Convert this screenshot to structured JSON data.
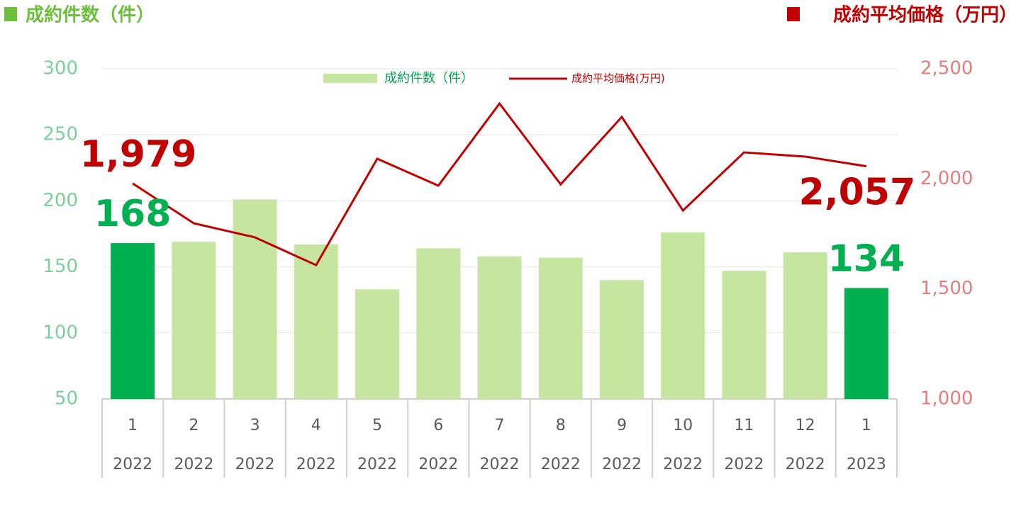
{
  "chart_data": {
    "type": "combo",
    "y_title": "成約件数（件）",
    "y2_title": "成約平均価格（万円）",
    "y_title_color": "#6cbf3c",
    "y2_title_color": "#c00000",
    "categories": [
      "1",
      "2",
      "3",
      "4",
      "5",
      "6",
      "7",
      "8",
      "9",
      "10",
      "11",
      "12",
      "1"
    ],
    "category_years": [
      "2022",
      "2022",
      "2022",
      "2022",
      "2022",
      "2022",
      "2022",
      "2022",
      "2022",
      "2022",
      "2022",
      "2022",
      "2023"
    ],
    "series": [
      {
        "name": "成約件数（件）",
        "type": "bar",
        "color": "#c5e5a0",
        "colors": [
          "#00b050",
          "#c5e5a0",
          "#c5e5a0",
          "#c5e5a0",
          "#c5e5a0",
          "#c5e5a0",
          "#c5e5a0",
          "#c5e5a0",
          "#c5e5a0",
          "#c5e5a0",
          "#c5e5a0",
          "#c5e5a0",
          "#00b050"
        ],
        "values": [
          168,
          169,
          201,
          167,
          133,
          164,
          158,
          157,
          140,
          176,
          147,
          161,
          134
        ],
        "value_labels": [
          "168",
          null,
          null,
          null,
          null,
          null,
          null,
          null,
          null,
          null,
          null,
          null,
          "134"
        ],
        "label_color": "#00b050"
      },
      {
        "name": "成約平均価格(万円)",
        "type": "line",
        "axis": "y2",
        "color": "#c00000",
        "values": [
          1979,
          1798,
          1734,
          1608,
          2091,
          1969,
          2342,
          1975,
          2281,
          1856,
          2120,
          2101,
          2057
        ],
        "value_labels": [
          "1,979",
          null,
          null,
          null,
          null,
          null,
          null,
          null,
          null,
          null,
          null,
          null,
          "2,057"
        ],
        "label_color": "#c00000"
      }
    ],
    "ylim": [
      50,
      300
    ],
    "yticks": [
      50,
      100,
      150,
      200,
      250,
      300
    ],
    "y2lim": [
      1000,
      2500
    ],
    "y2ticks": [
      {
        "value": 1000,
        "label": "1,000"
      },
      {
        "value": 1500,
        "label": "1,500"
      },
      {
        "value": 2000,
        "label": "2,000"
      },
      {
        "value": 2500,
        "label": "2,500"
      }
    ],
    "y_tick_color": "#7ccf9c",
    "y2_tick_color": "#e87c7c",
    "grid": true
  }
}
